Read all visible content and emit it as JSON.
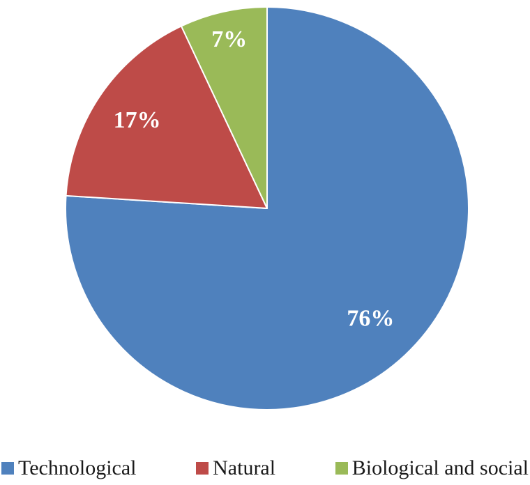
{
  "chart_data": {
    "type": "pie",
    "title": "",
    "start_angle_deg": 0,
    "direction": "clockwise",
    "legend_position": "bottom",
    "background_color": "#ffffff",
    "slice_border_color": "#ffffff",
    "label_color": "#ffffff",
    "slices": [
      {
        "label": "Technological",
        "value": 76,
        "display": "76%",
        "color": "#4F81BD",
        "label_r": 0.75
      },
      {
        "label": "Natural",
        "value": 17,
        "display": "17%",
        "color": "#BE4B48",
        "label_r": 0.78
      },
      {
        "label": "Biological and social",
        "value": 7,
        "display": "7%",
        "color": "#9ABA58",
        "label_r": 0.86
      }
    ]
  }
}
